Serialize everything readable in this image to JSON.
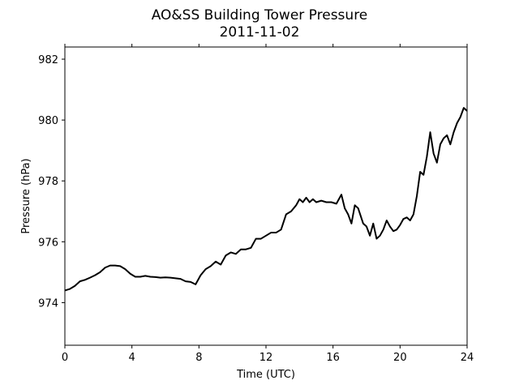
{
  "chart_data": {
    "type": "line",
    "title": "AO&SS Building Tower Pressure",
    "subtitle": "2011-11-02",
    "xlabel": "Time (UTC)",
    "ylabel": "Pressure (hPa)",
    "xlim": [
      0,
      24
    ],
    "ylim": [
      972.6,
      982.4
    ],
    "xticks": [
      0,
      4,
      8,
      12,
      16,
      20,
      24
    ],
    "yticks": [
      974,
      976,
      978,
      980,
      982
    ],
    "grid": false,
    "series": [
      {
        "color": "#000000",
        "x": [
          0,
          0.3,
          0.6,
          0.9,
          1.2,
          1.5,
          1.8,
          2.1,
          2.4,
          2.7,
          3.0,
          3.3,
          3.6,
          3.9,
          4.2,
          4.5,
          4.8,
          5.1,
          5.4,
          5.7,
          6.0,
          6.3,
          6.6,
          6.9,
          7.2,
          7.5,
          7.8,
          8.1,
          8.4,
          8.7,
          9.0,
          9.3,
          9.6,
          9.9,
          10.2,
          10.5,
          10.8,
          11.1,
          11.4,
          11.7,
          12.0,
          12.3,
          12.6,
          12.9,
          13.2,
          13.5,
          13.8,
          14.0,
          14.2,
          14.4,
          14.6,
          14.8,
          15.0,
          15.3,
          15.6,
          15.9,
          16.2,
          16.5,
          16.7,
          16.9,
          17.1,
          17.3,
          17.5,
          17.8,
          18.0,
          18.2,
          18.4,
          18.6,
          18.8,
          19.0,
          19.2,
          19.4,
          19.6,
          19.8,
          20.0,
          20.2,
          20.4,
          20.6,
          20.8,
          21.0,
          21.2,
          21.4,
          21.6,
          21.8,
          22.0,
          22.2,
          22.4,
          22.6,
          22.8,
          23.0,
          23.2,
          23.4,
          23.6,
          23.8,
          24.0
        ],
        "values": [
          974.4,
          974.45,
          974.55,
          974.7,
          974.75,
          974.82,
          974.9,
          975.0,
          975.15,
          975.22,
          975.22,
          975.2,
          975.1,
          974.95,
          974.85,
          974.85,
          974.88,
          974.85,
          974.84,
          974.82,
          974.83,
          974.82,
          974.8,
          974.78,
          974.7,
          974.68,
          974.6,
          974.9,
          975.1,
          975.2,
          975.35,
          975.25,
          975.55,
          975.65,
          975.6,
          975.75,
          975.75,
          975.8,
          976.1,
          976.1,
          976.2,
          976.3,
          976.3,
          976.4,
          976.9,
          977.0,
          977.2,
          977.4,
          977.3,
          977.45,
          977.3,
          977.4,
          977.3,
          977.35,
          977.3,
          977.3,
          977.25,
          977.55,
          977.1,
          976.9,
          976.6,
          977.2,
          977.1,
          976.6,
          976.5,
          976.2,
          976.6,
          976.1,
          976.2,
          976.4,
          976.7,
          976.5,
          976.35,
          976.4,
          976.55,
          976.75,
          976.8,
          976.7,
          976.9,
          977.5,
          978.3,
          978.2,
          978.8,
          979.6,
          978.9,
          978.6,
          979.2,
          979.4,
          979.5,
          979.2,
          979.6,
          979.9,
          980.1,
          980.4,
          980.3
        ]
      }
    ]
  }
}
